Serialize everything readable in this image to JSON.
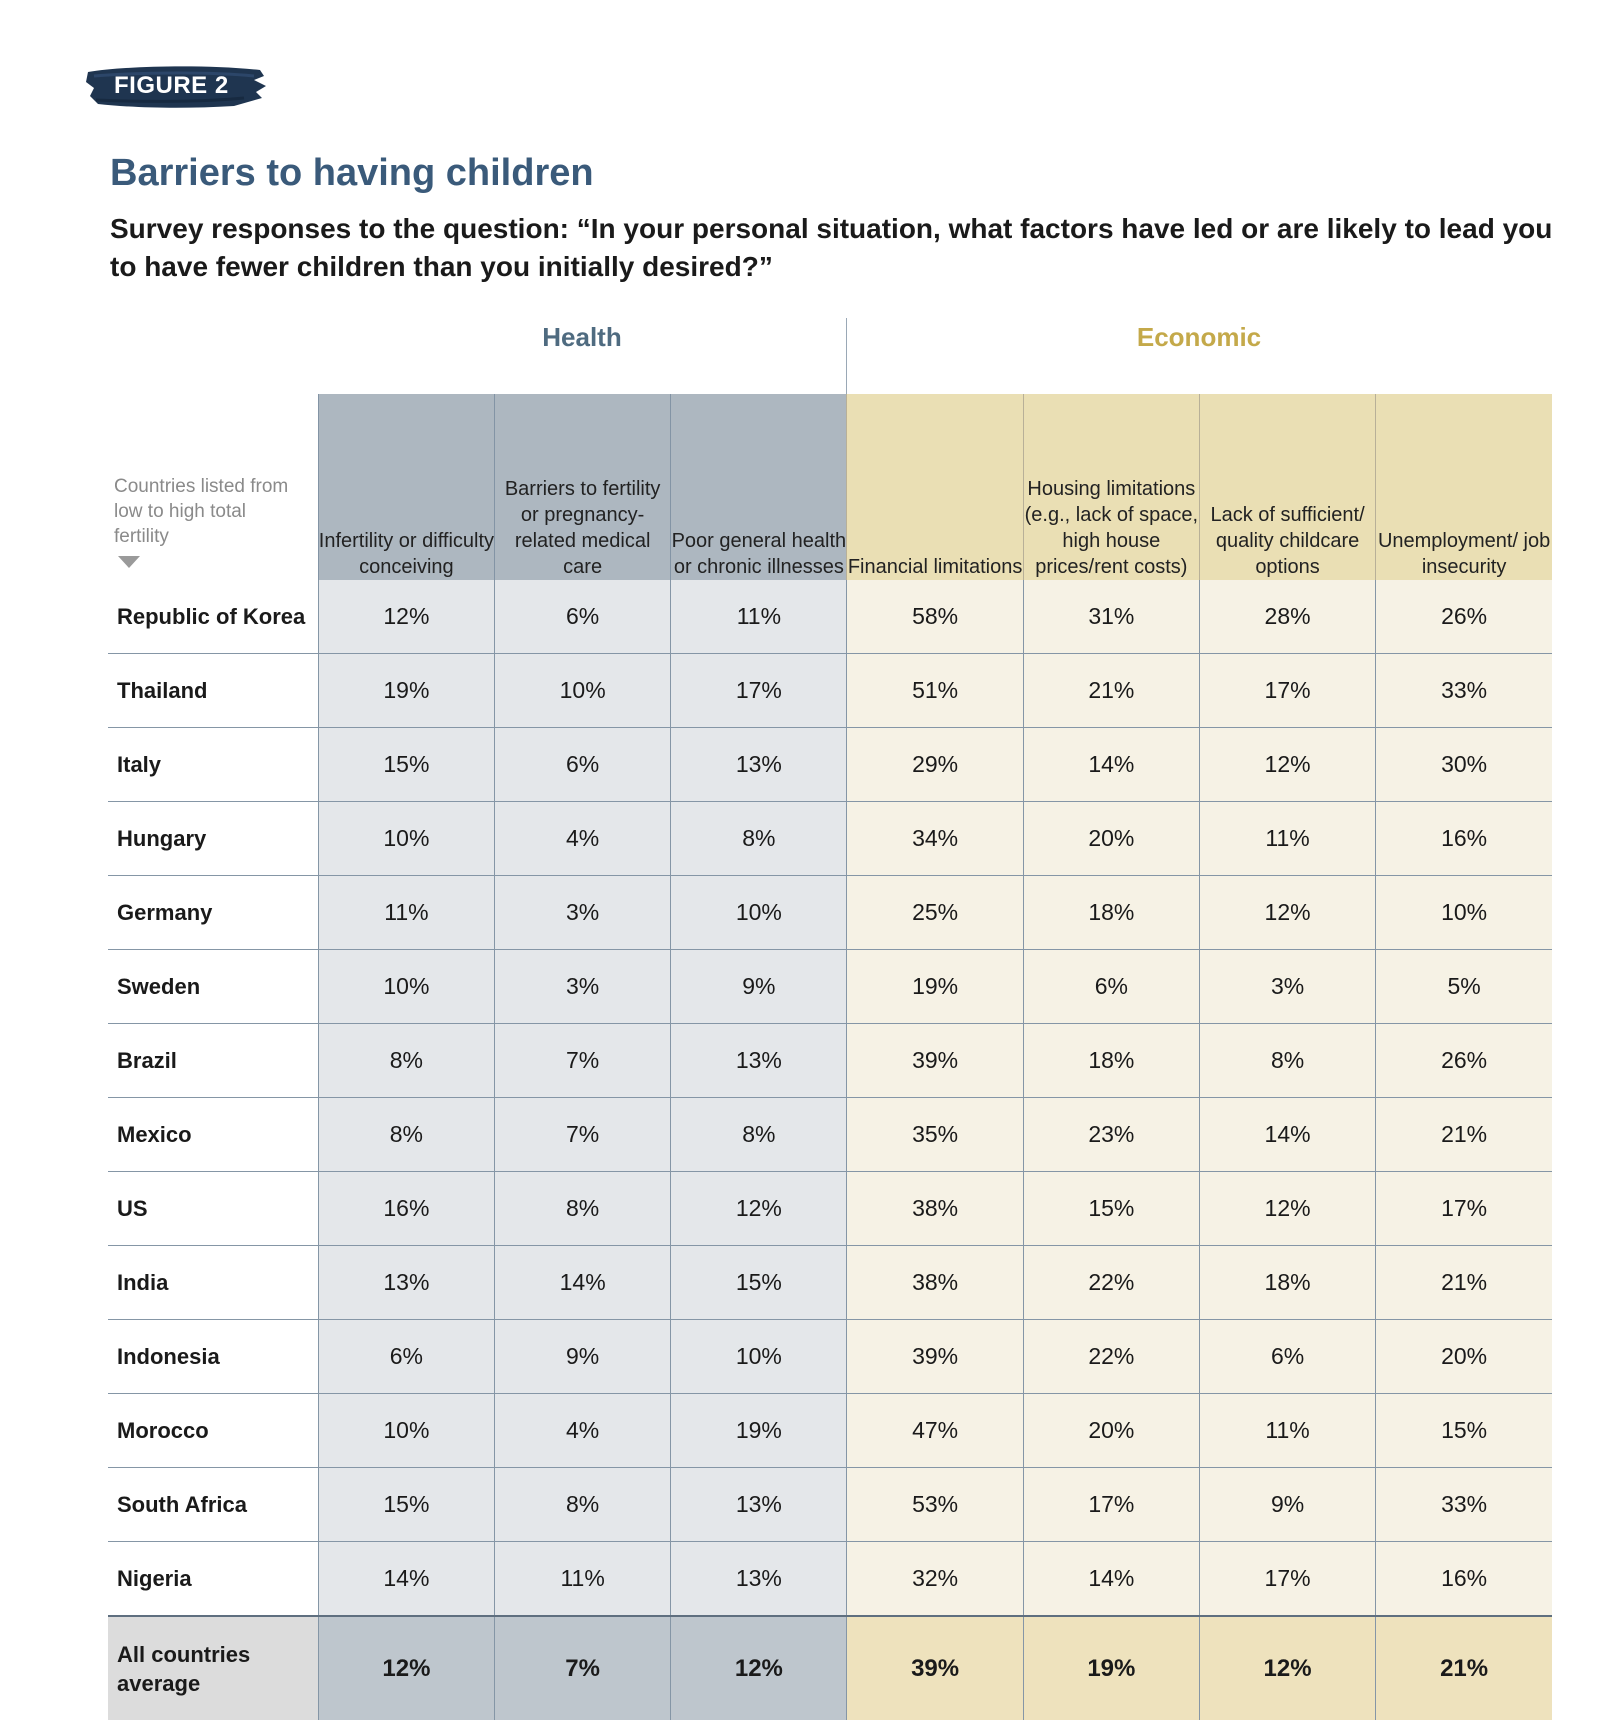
{
  "figure_label": "FIGURE 2",
  "chart_data": {
    "type": "table",
    "title": "Barriers to having children",
    "subtitle": "Survey responses to the question: “In your personal situation, what factors have led or are likely to lead you to have fewer children than you initially desired?”",
    "groups": [
      {
        "name": "Health",
        "color": "#4f6b80"
      },
      {
        "name": "Economic",
        "color": "#c4a94a"
      }
    ],
    "row_note": "Countries listed from low to high total fertility",
    "columns": [
      {
        "label": "Infertility or difficulty conceiving",
        "group": "Health"
      },
      {
        "label": "Barriers to fertility or pregnancy-related medical care",
        "group": "Health"
      },
      {
        "label": "Poor general health or chronic illnesses",
        "group": "Health"
      },
      {
        "label": "Financial limitations",
        "group": "Economic"
      },
      {
        "label": "Housing limitations (e.g., lack of space, high house prices/rent costs)",
        "group": "Economic"
      },
      {
        "label": "Lack of sufficient/ quality childcare options",
        "group": "Economic"
      },
      {
        "label": "Unemployment/ job insecurity",
        "group": "Economic"
      }
    ],
    "rows": [
      {
        "country": "Republic of Korea",
        "values": [
          "12%",
          "6%",
          "11%",
          "58%",
          "31%",
          "28%",
          "26%"
        ]
      },
      {
        "country": "Thailand",
        "values": [
          "19%",
          "10%",
          "17%",
          "51%",
          "21%",
          "17%",
          "33%"
        ]
      },
      {
        "country": "Italy",
        "values": [
          "15%",
          "6%",
          "13%",
          "29%",
          "14%",
          "12%",
          "30%"
        ]
      },
      {
        "country": "Hungary",
        "values": [
          "10%",
          "4%",
          "8%",
          "34%",
          "20%",
          "11%",
          "16%"
        ]
      },
      {
        "country": "Germany",
        "values": [
          "11%",
          "3%",
          "10%",
          "25%",
          "18%",
          "12%",
          "10%"
        ]
      },
      {
        "country": "Sweden",
        "values": [
          "10%",
          "3%",
          "9%",
          "19%",
          "6%",
          "3%",
          "5%"
        ]
      },
      {
        "country": "Brazil",
        "values": [
          "8%",
          "7%",
          "13%",
          "39%",
          "18%",
          "8%",
          "26%"
        ]
      },
      {
        "country": "Mexico",
        "values": [
          "8%",
          "7%",
          "8%",
          "35%",
          "23%",
          "14%",
          "21%"
        ]
      },
      {
        "country": "US",
        "values": [
          "16%",
          "8%",
          "12%",
          "38%",
          "15%",
          "12%",
          "17%"
        ]
      },
      {
        "country": "India",
        "values": [
          "13%",
          "14%",
          "15%",
          "38%",
          "22%",
          "18%",
          "21%"
        ]
      },
      {
        "country": "Indonesia",
        "values": [
          "6%",
          "9%",
          "10%",
          "39%",
          "22%",
          "6%",
          "20%"
        ]
      },
      {
        "country": "Morocco",
        "values": [
          "10%",
          "4%",
          "19%",
          "47%",
          "20%",
          "11%",
          "15%"
        ]
      },
      {
        "country": "South Africa",
        "values": [
          "15%",
          "8%",
          "13%",
          "53%",
          "17%",
          "9%",
          "33%"
        ]
      },
      {
        "country": "Nigeria",
        "values": [
          "14%",
          "11%",
          "13%",
          "32%",
          "14%",
          "17%",
          "16%"
        ]
      }
    ],
    "average": {
      "label": "All countries average",
      "values": [
        "12%",
        "7%",
        "12%",
        "39%",
        "19%",
        "12%",
        "21%"
      ]
    }
  }
}
